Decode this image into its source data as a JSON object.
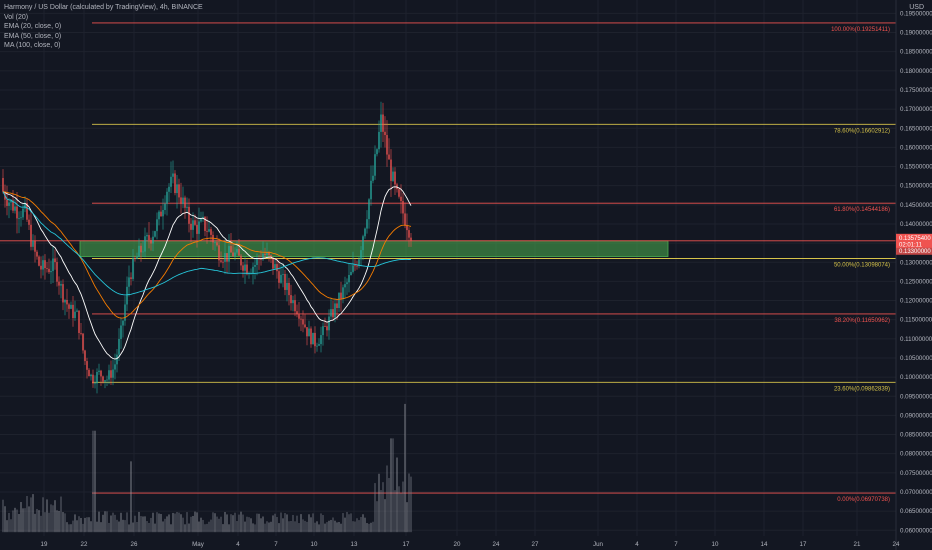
{
  "chart_data": {
    "type": "candlestick",
    "title": "Harmony / US Dollar (calculated by TradingView), 4h, BINANCE",
    "indicators": [
      "Vol (20)",
      "EMA (20, close, 0)",
      "EMA (50, close, 0)",
      "MA (100, close, 0)"
    ],
    "currency": "USD",
    "y_ticks": [
      "0.19500000",
      "0.19000000",
      "0.18500000",
      "0.18000000",
      "0.17500000",
      "0.17000000",
      "0.16500000",
      "0.16000000",
      "0.15500000",
      "0.15000000",
      "0.14500000",
      "0.14000000",
      "0.13500000",
      "0.13000000",
      "0.12500000",
      "0.12000000",
      "0.11500000",
      "0.11000000",
      "0.10500000",
      "0.10000000",
      "0.09500000",
      "0.09000000",
      "0.08500000",
      "0.08000000",
      "0.07500000",
      "0.07000000",
      "0.06500000",
      "0.06000000"
    ],
    "ylim": [
      0.0585,
      0.1985
    ],
    "x_ticks": [
      "19",
      "22",
      "26",
      "May",
      "4",
      "7",
      "10",
      "13",
      "17",
      "20",
      "24",
      "27",
      "Jun",
      "4",
      "7",
      "10",
      "14",
      "17",
      "21",
      "24"
    ],
    "price_path": [
      [
        0.152,
        0.145
      ],
      [
        0.148,
        0.143
      ],
      [
        0.146,
        0.141
      ],
      [
        0.144,
        0.142
      ],
      [
        0.14,
        0.128
      ],
      [
        0.135,
        0.122
      ],
      [
        0.132,
        0.125
      ],
      [
        0.13,
        0.128
      ],
      [
        0.126,
        0.118
      ],
      [
        0.123,
        0.112
      ],
      [
        0.122,
        0.11
      ],
      [
        0.11,
        0.099
      ],
      [
        0.102,
        0.097
      ],
      [
        0.103,
        0.099
      ],
      [
        0.101,
        0.098
      ],
      [
        0.105,
        0.1
      ],
      [
        0.115,
        0.11
      ],
      [
        0.128,
        0.125
      ],
      [
        0.132,
        0.13
      ],
      [
        0.135,
        0.134
      ],
      [
        0.138,
        0.136
      ],
      [
        0.142,
        0.14
      ],
      [
        0.15,
        0.148
      ],
      [
        0.152,
        0.15
      ],
      [
        0.148,
        0.146
      ],
      [
        0.142,
        0.14
      ],
      [
        0.14,
        0.138
      ],
      [
        0.141,
        0.139
      ],
      [
        0.138,
        0.137
      ],
      [
        0.134,
        0.132
      ],
      [
        0.132,
        0.131
      ],
      [
        0.133,
        0.132
      ],
      [
        0.131,
        0.13
      ],
      [
        0.129,
        0.128
      ],
      [
        0.13,
        0.129
      ],
      [
        0.133,
        0.132
      ],
      [
        0.131,
        0.13
      ],
      [
        0.128,
        0.127
      ],
      [
        0.126,
        0.122
      ],
      [
        0.122,
        0.118
      ],
      [
        0.118,
        0.116
      ],
      [
        0.114,
        0.11
      ],
      [
        0.11,
        0.108
      ],
      [
        0.112,
        0.11
      ],
      [
        0.116,
        0.114
      ],
      [
        0.12,
        0.118
      ],
      [
        0.124,
        0.122
      ],
      [
        0.128,
        0.126
      ],
      [
        0.133,
        0.131
      ],
      [
        0.14,
        0.145
      ],
      [
        0.15,
        0.158
      ],
      [
        0.17,
        0.165
      ],
      [
        0.16,
        0.152
      ],
      [
        0.15,
        0.145
      ],
      [
        0.145,
        0.14
      ],
      [
        0.138,
        0.137
      ]
    ],
    "volume_spikes": [
      {
        "x": 94,
        "value": 0.086
      },
      {
        "x": 131,
        "value": 0.078
      },
      {
        "x": 392,
        "value": 0.084
      },
      {
        "x": 397,
        "value": 0.079
      },
      {
        "x": 405,
        "value": 0.093
      }
    ],
    "fib_levels": [
      {
        "label": "100.00%(0.19251411)",
        "price": 0.19251,
        "color": "#ef5350"
      },
      {
        "label": "78.60%(0.16602912)",
        "price": 0.16603,
        "color": "#d6c34a"
      },
      {
        "label": "61.80%(0.14544186)",
        "price": 0.14544,
        "color": "#ef5350"
      },
      {
        "label": "50.00%(0.13098074)",
        "price": 0.13098,
        "color": "#d6c34a"
      },
      {
        "label": "38.20%(0.11650962)",
        "price": 0.11651,
        "color": "#ef5350"
      },
      {
        "label": "23.60%(0.09862839)",
        "price": 0.09863,
        "color": "#d6c34a"
      },
      {
        "label": "0.00%(0.06970738)",
        "price": 0.06971,
        "color": "#ef5350"
      }
    ],
    "zone": {
      "low": 0.1315,
      "high": 0.1356,
      "color": "#4caf50"
    },
    "current_price_tag": {
      "price": 0.1356,
      "label": "0.13575400",
      "countdown": "02:01:11"
    },
    "second_tag": {
      "price": 0.133,
      "label": "0.13300000"
    },
    "price_line": 0.1356,
    "grid": true
  }
}
